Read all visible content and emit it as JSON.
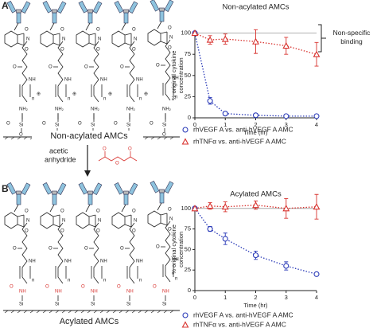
{
  "panels": [
    {
      "label": "A",
      "caption": "Non-acylated AMCs"
    },
    {
      "label": "B",
      "caption": "Acylated AMCs"
    }
  ],
  "reagent": [
    "acetic",
    "anhydride"
  ],
  "atoms": {
    "N": "N",
    "O": "O",
    "NH": "NH",
    "NH2": "NH₂",
    "Si": "Si",
    "n": "n",
    "plus": "⊕"
  },
  "chart_data": [
    {
      "type": "line",
      "title": "Non-acylated AMCs",
      "xlabel": "Time (hr)",
      "ylabel": [
        "% original cytokine",
        "concentration"
      ],
      "x": [
        0,
        0.5,
        1,
        2,
        3,
        4
      ],
      "xlim": [
        0,
        4
      ],
      "xticks": [
        0,
        1,
        2,
        3,
        4
      ],
      "ylim": [
        0,
        125
      ],
      "yticks": [
        0,
        25,
        50,
        75,
        100
      ],
      "reference_line": 100,
      "annotation": [
        "Non-specific",
        "binding"
      ],
      "series": [
        {
          "name": "rhVEGF A vs. anti-hVEGF A AMC",
          "color": "#2b3bb8",
          "marker": "circle",
          "values": [
            100,
            20,
            5,
            3,
            2,
            2
          ],
          "errors": [
            0,
            4,
            2,
            1,
            1,
            1
          ]
        },
        {
          "name": "rhTNFα vs. anti-hVEGF A AMC",
          "color": "#d8322e",
          "marker": "triangle",
          "values": [
            100,
            92,
            93,
            90,
            85,
            75
          ],
          "errors": [
            0,
            5,
            6,
            14,
            10,
            14
          ]
        }
      ]
    },
    {
      "type": "line",
      "title": "Acylated AMCs",
      "xlabel": "Time (hr)",
      "ylabel": [
        "% original cytokine",
        "concentration"
      ],
      "x": [
        0,
        0.5,
        1,
        2,
        3,
        4
      ],
      "xlim": [
        0,
        4
      ],
      "xticks": [
        0,
        1,
        2,
        3,
        4
      ],
      "ylim": [
        0,
        125
      ],
      "yticks": [
        0,
        25,
        50,
        75,
        100
      ],
      "reference_line": 100,
      "series": [
        {
          "name": "rhVEGF A vs. anti-hVEGF A AMC",
          "color": "#2b3bb8",
          "marker": "circle",
          "values": [
            100,
            75,
            63,
            43,
            30,
            20
          ],
          "errors": [
            0,
            3,
            7,
            5,
            5,
            2
          ]
        },
        {
          "name": "rhTNFα vs. anti-hVEGF A AMC",
          "color": "#d8322e",
          "marker": "triangle",
          "values": [
            100,
            103,
            102,
            104,
            100,
            102
          ],
          "errors": [
            0,
            4,
            6,
            5,
            12,
            15
          ]
        }
      ]
    }
  ]
}
